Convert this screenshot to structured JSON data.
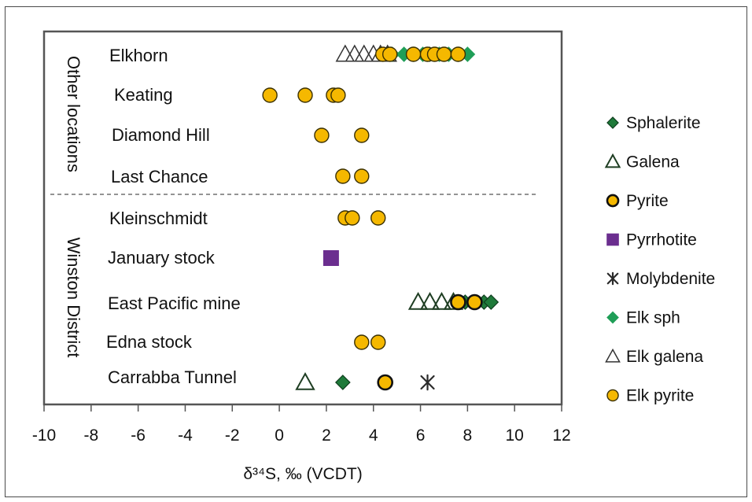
{
  "chart_data": {
    "type": "scatter",
    "xlabel": "δ³⁴S, ‰ (VCDT)",
    "xlim": [
      -10,
      12
    ],
    "x_ticks": [
      "-10",
      "-8",
      "-6",
      "-4",
      "-2",
      "0",
      "2",
      "4",
      "6",
      "8",
      "10",
      "12"
    ],
    "categories": [
      "Elkhorn",
      "Keating",
      "Diamond Hill",
      "Last Chance",
      "Kleinschmidt",
      "January stock",
      "East Pacific mine",
      "Edna stock",
      "Carrabba Tunnel"
    ],
    "groups": [
      {
        "label": "Other locations",
        "categories": [
          "Elkhorn",
          "Keating",
          "Diamond Hill",
          "Last Chance"
        ]
      },
      {
        "label": "Winston District",
        "categories": [
          "Kleinschmidt",
          "January stock",
          "East Pacific mine",
          "Edna stock",
          "Carrabba Tunnel"
        ]
      }
    ],
    "legend_position": "right",
    "series": [
      {
        "name": "Sphalerite",
        "marker": "diamond-filled-dark",
        "color": "#1f7a3a",
        "points": [
          {
            "cat": "East Pacific mine",
            "x": [
              7.9,
              8.3,
              8.7,
              9.0
            ]
          },
          {
            "cat": "Carrabba Tunnel",
            "x": [
              2.7
            ]
          }
        ]
      },
      {
        "name": "Galena",
        "marker": "triangle-open-dark",
        "color": "#1e3d22",
        "points": [
          {
            "cat": "East Pacific mine",
            "x": [
              5.9,
              6.4,
              6.9,
              7.4
            ]
          },
          {
            "cat": "Carrabba Tunnel",
            "x": [
              1.1
            ]
          }
        ]
      },
      {
        "name": "Pyrite",
        "marker": "circle-gold-heavy",
        "color": "#f5b800",
        "points": [
          {
            "cat": "East Pacific mine",
            "x": [
              7.6,
              8.3
            ]
          },
          {
            "cat": "Carrabba Tunnel",
            "x": [
              4.5
            ]
          }
        ]
      },
      {
        "name": "Pyrrhotite",
        "marker": "square",
        "color": "#6b2e8f",
        "points": [
          {
            "cat": "January stock",
            "x": [
              2.2
            ]
          }
        ]
      },
      {
        "name": "Molybdenite",
        "marker": "asterisk",
        "color": "#2a2a2a",
        "points": [
          {
            "cat": "Carrabba Tunnel",
            "x": [
              6.3
            ]
          }
        ]
      },
      {
        "name": "Elk sph",
        "marker": "diamond-filled",
        "color": "#1f9e57",
        "points": [
          {
            "cat": "Elkhorn",
            "x": [
              4.8,
              5.3,
              5.7,
              6.1,
              6.4,
              6.8,
              7.2,
              7.6,
              8.0
            ]
          }
        ]
      },
      {
        "name": "Elk galena",
        "marker": "triangle-open",
        "color": "#333333",
        "points": [
          {
            "cat": "Elkhorn",
            "x": [
              2.8,
              3.2,
              3.6,
              4.0,
              4.3,
              4.6
            ]
          }
        ]
      },
      {
        "name": "Elk pyrite",
        "marker": "circle-gold",
        "color": "#f5b800",
        "points": [
          {
            "cat": "Elkhorn",
            "x": [
              4.4,
              4.7,
              5.7,
              6.3,
              6.6,
              7.0,
              7.6
            ]
          },
          {
            "cat": "Keating",
            "x": [
              -0.4,
              1.1,
              2.3,
              2.5
            ]
          },
          {
            "cat": "Diamond Hill",
            "x": [
              1.8,
              3.5
            ]
          },
          {
            "cat": "Last Chance",
            "x": [
              2.7,
              3.5
            ]
          },
          {
            "cat": "Kleinschmidt",
            "x": [
              2.8,
              3.1,
              4.2
            ]
          },
          {
            "cat": "Edna stock",
            "x": [
              3.5,
              4.2
            ]
          }
        ]
      }
    ]
  }
}
